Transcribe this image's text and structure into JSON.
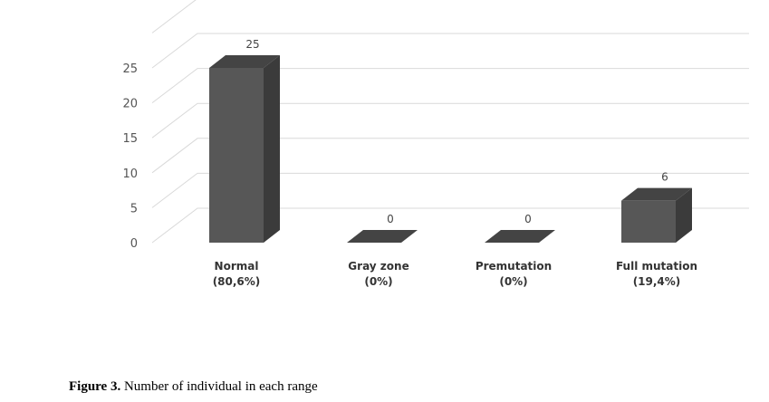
{
  "chart_data": {
    "type": "bar",
    "style": "3d-column",
    "categories": [
      [
        "Normal",
        "(80,6%)"
      ],
      [
        "Gray zone",
        "(0%)"
      ],
      [
        "Premutation",
        "(0%)"
      ],
      [
        "Full mutation",
        "(19,4%)"
      ]
    ],
    "values": [
      25,
      0,
      0,
      6
    ],
    "data_labels": [
      "25",
      "0",
      "0",
      "6"
    ],
    "yticks": [
      0,
      5,
      10,
      15,
      20,
      25
    ],
    "ylim": [
      0,
      30
    ],
    "grid": true,
    "legend": "none",
    "colors": {
      "bar_front": "#575757",
      "bar_top": "#444444",
      "bar_side": "#3b3b3b",
      "grid": "#d9d9d9"
    }
  },
  "caption": {
    "label": "Figure 3.",
    "text": " Number of individual in each range"
  }
}
